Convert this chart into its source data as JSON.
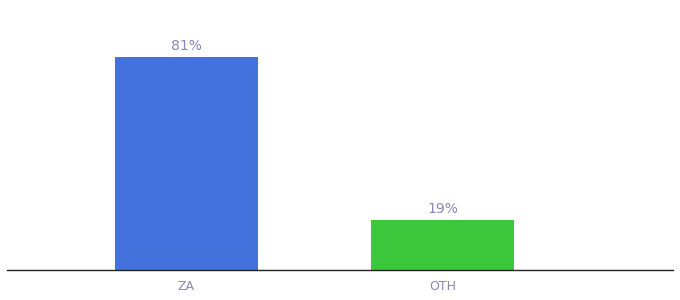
{
  "categories": [
    "ZA",
    "OTH"
  ],
  "values": [
    81,
    19
  ],
  "bar_colors": [
    "#4472dd",
    "#3cc83c"
  ],
  "value_labels": [
    "81%",
    "19%"
  ],
  "background_color": "#ffffff",
  "ylim": [
    0,
    100
  ],
  "bar_width": 0.28,
  "label_fontsize": 10,
  "tick_fontsize": 9,
  "tick_color": "#8888bb"
}
